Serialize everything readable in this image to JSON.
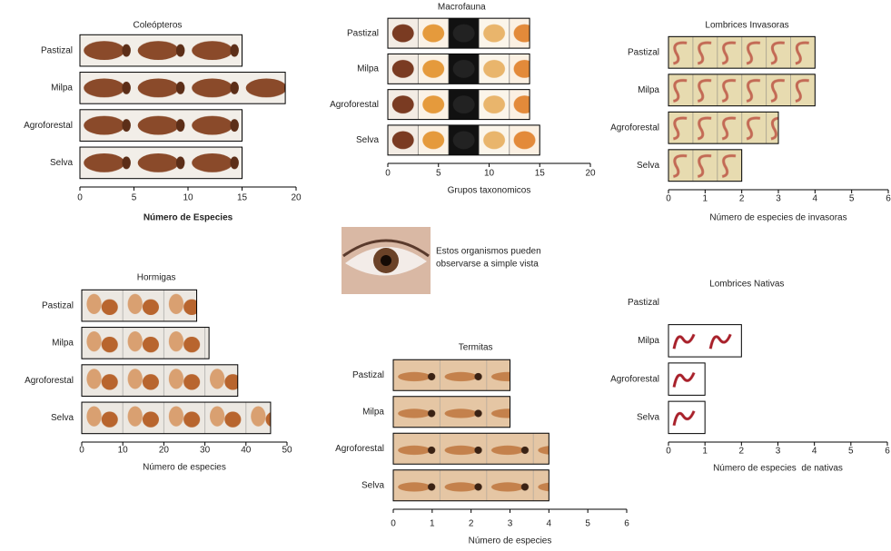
{
  "caption": [
    "Estos organismos pueden",
    "observarse a simple vista"
  ],
  "chart_data": [
    {
      "type": "bar",
      "orientation": "horizontal",
      "title": "Coleópteros",
      "x_label": "Número de Especies",
      "categories": [
        "Pastizal",
        "Milpa",
        "Agroforestal",
        "Selva"
      ],
      "values": [
        15,
        19,
        15,
        15
      ],
      "xlim": [
        0,
        20
      ],
      "xticks": [
        0,
        5,
        10,
        15,
        20
      ]
    },
    {
      "type": "bar",
      "orientation": "horizontal",
      "title": "Macrofauna",
      "x_label": "Grupos taxonomicos",
      "categories": [
        "Pastizal",
        "Milpa",
        "Agroforestal",
        "Selva"
      ],
      "values": [
        14,
        14,
        14,
        15
      ],
      "xlim": [
        0,
        20
      ],
      "xticks": [
        0,
        5,
        10,
        15,
        20
      ]
    },
    {
      "type": "bar",
      "orientation": "horizontal",
      "title": "Lombrices Invasoras",
      "x_label": "Número de especies de invasoras",
      "categories": [
        "Pastizal",
        "Milpa",
        "Agroforestal",
        "Selva"
      ],
      "values": [
        4,
        4,
        3,
        2
      ],
      "xlim": [
        0,
        6
      ],
      "xticks": [
        0,
        1,
        2,
        3,
        4,
        5,
        6
      ]
    },
    {
      "type": "bar",
      "orientation": "horizontal",
      "title": "Hormigas",
      "x_label": "Número de especies",
      "categories": [
        "Pastizal",
        "Milpa",
        "Agroforestal",
        "Selva"
      ],
      "values": [
        28,
        31,
        38,
        46
      ],
      "xlim": [
        0,
        50
      ],
      "xticks": [
        0,
        10,
        20,
        30,
        40,
        50
      ]
    },
    {
      "type": "bar",
      "orientation": "horizontal",
      "title": "Termitas",
      "x_label": "Número de especies",
      "categories": [
        "Pastizal",
        "Milpa",
        "Agroforestal",
        "Selva"
      ],
      "values": [
        3,
        3,
        4,
        4
      ],
      "xlim": [
        0,
        6
      ],
      "xticks": [
        0,
        1,
        2,
        3,
        4,
        5,
        6
      ]
    },
    {
      "type": "bar",
      "orientation": "horizontal",
      "title": "Lombrices Nativas",
      "x_label": "Número de especies  de nativas",
      "categories": [
        "Pastizal",
        "Milpa",
        "Agroforestal",
        "Selva"
      ],
      "values": [
        0,
        2,
        1,
        1
      ],
      "xlim": [
        0,
        6
      ],
      "xticks": [
        0,
        1,
        2,
        3,
        4,
        5,
        6
      ]
    }
  ]
}
